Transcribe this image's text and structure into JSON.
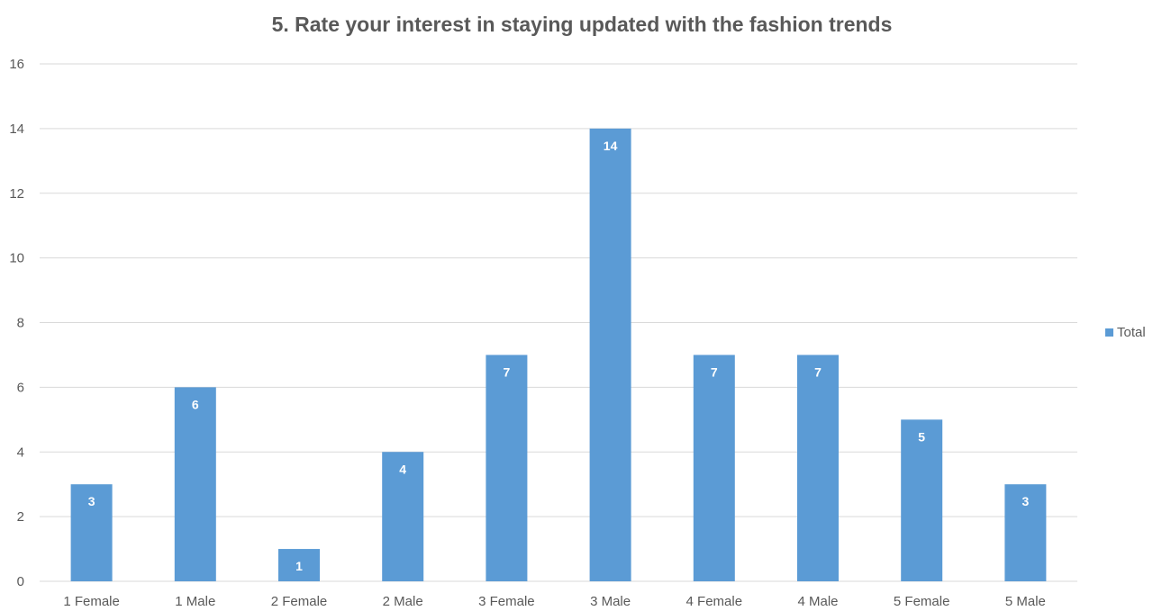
{
  "chart_data": {
    "type": "bar",
    "title": "5. Rate your interest in staying updated with the fashion trends",
    "xlabel": "",
    "ylabel": "",
    "categories": [
      "1 Female",
      "1 Male",
      "2 Female",
      "2 Male",
      "3 Female",
      "3 Male",
      "4 Female",
      "4 Male",
      "5 Female",
      "5 Male"
    ],
    "series": [
      {
        "name": "Total",
        "values": [
          3,
          6,
          1,
          4,
          7,
          14,
          7,
          7,
          5,
          3
        ]
      }
    ],
    "ylim": [
      0,
      16
    ],
    "yticks": [
      "0",
      "2",
      "4",
      "6",
      "8",
      "10",
      "12",
      "14",
      "16"
    ],
    "grid": true,
    "legend_position": "right",
    "data_labels": true,
    "colors": {
      "bar": "#5b9bd5",
      "grid": "#d9d9d9",
      "text": "#595959",
      "label_text": "#ffffff"
    }
  }
}
